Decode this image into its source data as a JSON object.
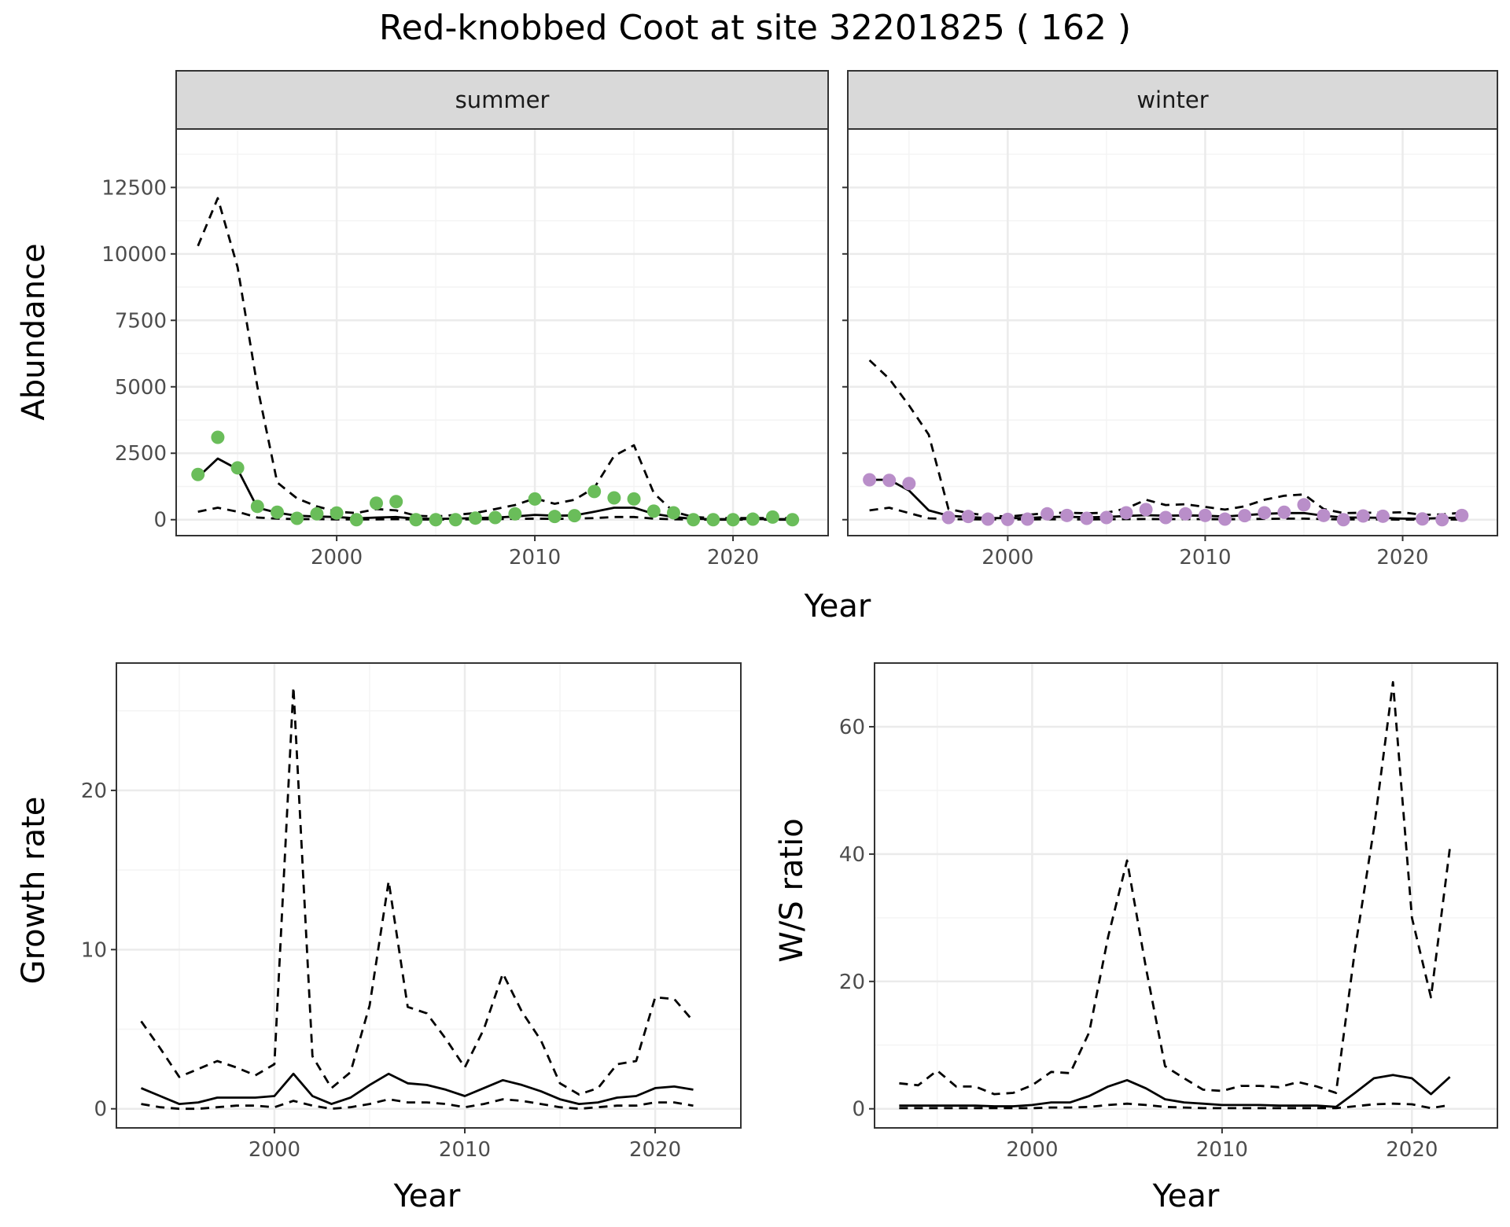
{
  "figure": {
    "title": "Red-knobbed Coot at site 32201825 ( 162 )"
  },
  "colors": {
    "summer_points": "#6abd5a",
    "winter_points": "#b98ec9",
    "line": "#000000",
    "grid_major": "#ebebeb",
    "grid_minor": "#f4f4f4",
    "strip_fill": "#d9d9d9"
  },
  "chart_data": [
    {
      "type": "line",
      "panel": "summer",
      "strip_label": "summer",
      "xlabel": "Year",
      "ylabel": "Abundance",
      "xlim": [
        1991.9,
        2024.8
      ],
      "ylim": [
        -600,
        14700
      ],
      "x_ticks": [
        2000,
        2010,
        2020
      ],
      "y_ticks": [
        0,
        2500,
        5000,
        7500,
        10000,
        12500
      ],
      "y_tick_labels": [
        "0",
        "2500",
        "5000",
        "7500",
        "10000",
        "12500"
      ],
      "grid": true,
      "points": {
        "x": [
          1993,
          1994,
          1995,
          1996,
          1997,
          1998,
          1999,
          2000,
          2001,
          2002,
          2003,
          2004,
          2005,
          2006,
          2007,
          2008,
          2009,
          2010,
          2011,
          2012,
          2013,
          2014,
          2015,
          2016,
          2017,
          2018,
          2019,
          2020,
          2021,
          2022,
          2023
        ],
        "y": [
          1700,
          3100,
          1950,
          500,
          280,
          50,
          220,
          250,
          0,
          620,
          680,
          0,
          0,
          0,
          60,
          80,
          220,
          780,
          120,
          150,
          1060,
          820,
          780,
          320,
          260,
          0,
          0,
          0,
          20,
          100,
          0
        ]
      },
      "series": [
        {
          "style": "solid",
          "x": [
            1993,
            1994,
            1995,
            1996,
            1997,
            1998,
            1999,
            2000,
            2001,
            2002,
            2003,
            2004,
            2005,
            2006,
            2007,
            2008,
            2009,
            2010,
            2011,
            2012,
            2013,
            2014,
            2015,
            2016,
            2017,
            2018,
            2019,
            2020,
            2021,
            2022,
            2023
          ],
          "values": [
            1600,
            2300,
            1900,
            450,
            260,
            150,
            120,
            100,
            50,
            80,
            100,
            40,
            30,
            40,
            60,
            80,
            120,
            180,
            150,
            160,
            300,
            450,
            450,
            220,
            100,
            30,
            20,
            20,
            20,
            20,
            20
          ]
        },
        {
          "style": "dashed",
          "x": [
            1993,
            1994,
            1995,
            1996,
            1997,
            1998,
            1999,
            2000,
            2001,
            2002,
            2003,
            2004,
            2005,
            2006,
            2007,
            2008,
            2009,
            2010,
            2011,
            2012,
            2013,
            2014,
            2015,
            2016,
            2017,
            2018,
            2019,
            2020,
            2021,
            2022,
            2023
          ],
          "values": [
            10300,
            12100,
            9500,
            5000,
            1400,
            800,
            500,
            300,
            250,
            400,
            350,
            150,
            120,
            180,
            250,
            400,
            550,
            800,
            600,
            750,
            1200,
            2400,
            2800,
            1000,
            300,
            100,
            60,
            60,
            60,
            60,
            60
          ]
        },
        {
          "style": "dashed",
          "x": [
            1993,
            1994,
            1995,
            1996,
            1997,
            1998,
            1999,
            2000,
            2001,
            2002,
            2003,
            2004,
            2005,
            2006,
            2007,
            2008,
            2009,
            2010,
            2011,
            2012,
            2013,
            2014,
            2015,
            2016,
            2017,
            2018,
            2019,
            2020,
            2021,
            2022,
            2023
          ],
          "values": [
            300,
            450,
            300,
            80,
            40,
            20,
            20,
            10,
            10,
            10,
            20,
            10,
            5,
            10,
            15,
            20,
            30,
            40,
            30,
            40,
            60,
            100,
            100,
            40,
            15,
            5,
            2,
            2,
            2,
            2,
            2
          ]
        }
      ]
    },
    {
      "type": "line",
      "panel": "winter",
      "strip_label": "winter",
      "xlabel": "Year",
      "ylabel": "",
      "xlim": [
        1991.9,
        2024.8
      ],
      "ylim": [
        -600,
        14700
      ],
      "x_ticks": [
        2000,
        2010,
        2020
      ],
      "grid": true,
      "points": {
        "x": [
          1993,
          1994,
          1995,
          1997,
          1998,
          1999,
          2000,
          2001,
          2002,
          2003,
          2004,
          2005,
          2006,
          2007,
          2008,
          2009,
          2010,
          2011,
          2012,
          2013,
          2014,
          2015,
          2016,
          2017,
          2018,
          2019,
          2021,
          2022,
          2023
        ],
        "y": [
          1500,
          1480,
          1360,
          80,
          120,
          20,
          10,
          20,
          220,
          160,
          50,
          80,
          260,
          380,
          80,
          220,
          160,
          20,
          150,
          260,
          280,
          560,
          160,
          0,
          140,
          130,
          30,
          0,
          160
        ]
      },
      "series": [
        {
          "style": "solid",
          "x": [
            1993,
            1994,
            1995,
            1996,
            1997,
            1998,
            1999,
            2000,
            2001,
            2002,
            2003,
            2004,
            2005,
            2006,
            2007,
            2008,
            2009,
            2010,
            2011,
            2012,
            2013,
            2014,
            2015,
            2016,
            2017,
            2018,
            2019,
            2020,
            2021,
            2022,
            2023
          ],
          "values": [
            1500,
            1500,
            1100,
            350,
            150,
            100,
            60,
            60,
            60,
            100,
            110,
            90,
            100,
            140,
            170,
            150,
            160,
            150,
            120,
            170,
            220,
            250,
            250,
            150,
            80,
            80,
            70,
            40,
            40,
            60,
            80
          ]
        },
        {
          "style": "dashed",
          "x": [
            1993,
            1994,
            1995,
            1996,
            1997,
            1998,
            1999,
            2000,
            2001,
            2002,
            2003,
            2004,
            2005,
            2006,
            2007,
            2008,
            2009,
            2010,
            2011,
            2012,
            2013,
            2014,
            2015,
            2016,
            2017,
            2018,
            2019,
            2020,
            2021,
            2022,
            2023
          ],
          "values": [
            6000,
            5300,
            4300,
            3200,
            400,
            250,
            150,
            120,
            180,
            250,
            260,
            240,
            260,
            420,
            750,
            550,
            580,
            480,
            380,
            500,
            750,
            900,
            950,
            400,
            250,
            260,
            260,
            280,
            180,
            200,
            260
          ]
        },
        {
          "style": "dashed",
          "x": [
            1993,
            1994,
            1995,
            1996,
            1997,
            1998,
            1999,
            2000,
            2001,
            2002,
            2003,
            2004,
            2005,
            2006,
            2007,
            2008,
            2009,
            2010,
            2011,
            2012,
            2013,
            2014,
            2015,
            2016,
            2017,
            2018,
            2019,
            2020,
            2021,
            2022,
            2023
          ],
          "values": [
            350,
            450,
            250,
            50,
            20,
            15,
            10,
            10,
            10,
            15,
            15,
            10,
            15,
            20,
            25,
            20,
            20,
            20,
            15,
            20,
            30,
            40,
            40,
            20,
            10,
            10,
            10,
            5,
            5,
            5,
            10
          ]
        }
      ]
    },
    {
      "type": "line",
      "panel": "growth",
      "xlabel": "Year",
      "ylabel": "Growth rate",
      "xlim": [
        1991.7,
        2024.5
      ],
      "ylim": [
        -1.2,
        28.0
      ],
      "x_ticks": [
        2000,
        2010,
        2020
      ],
      "y_ticks": [
        0,
        10,
        20
      ],
      "y_tick_labels": [
        "0",
        "10",
        "20"
      ],
      "grid": true,
      "series": [
        {
          "style": "solid",
          "x": [
            1993,
            1994,
            1995,
            1996,
            1997,
            1998,
            1999,
            2000,
            2001,
            2002,
            2003,
            2004,
            2005,
            2006,
            2007,
            2008,
            2009,
            2010,
            2011,
            2012,
            2013,
            2014,
            2015,
            2016,
            2017,
            2018,
            2019,
            2020,
            2021,
            2022
          ],
          "values": [
            1.3,
            0.8,
            0.3,
            0.4,
            0.7,
            0.7,
            0.7,
            0.8,
            2.2,
            0.8,
            0.3,
            0.7,
            1.5,
            2.2,
            1.6,
            1.5,
            1.2,
            0.8,
            1.3,
            1.8,
            1.5,
            1.1,
            0.6,
            0.3,
            0.4,
            0.7,
            0.8,
            1.3,
            1.4,
            1.2
          ]
        },
        {
          "style": "dashed",
          "x": [
            1993,
            1994,
            1995,
            1996,
            1997,
            1998,
            1999,
            2000,
            2001,
            2002,
            2003,
            2004,
            2005,
            2006,
            2007,
            2008,
            2009,
            2010,
            2011,
            2012,
            2013,
            2014,
            2015,
            2016,
            2017,
            2018,
            2019,
            2020,
            2021,
            2022
          ],
          "values": [
            5.5,
            3.8,
            2.0,
            2.5,
            3.0,
            2.6,
            2.1,
            2.8,
            26.5,
            3.3,
            1.3,
            2.3,
            6.5,
            14.3,
            6.4,
            6.0,
            4.4,
            2.6,
            5.0,
            8.5,
            6.1,
            4.3,
            1.6,
            0.9,
            1.3,
            2.8,
            3.0,
            7.0,
            6.9,
            5.5
          ]
        },
        {
          "style": "dashed",
          "x": [
            1993,
            1994,
            1995,
            1996,
            1997,
            1998,
            1999,
            2000,
            2001,
            2002,
            2003,
            2004,
            2005,
            2006,
            2007,
            2008,
            2009,
            2010,
            2011,
            2012,
            2013,
            2014,
            2015,
            2016,
            2017,
            2018,
            2019,
            2020,
            2021,
            2022
          ],
          "values": [
            0.3,
            0.1,
            0.0,
            0.0,
            0.1,
            0.2,
            0.2,
            0.1,
            0.5,
            0.2,
            0.0,
            0.1,
            0.3,
            0.6,
            0.4,
            0.4,
            0.3,
            0.1,
            0.3,
            0.6,
            0.5,
            0.3,
            0.1,
            0.0,
            0.1,
            0.2,
            0.2,
            0.4,
            0.4,
            0.2
          ]
        }
      ]
    },
    {
      "type": "line",
      "panel": "ws_ratio",
      "xlabel": "Year",
      "ylabel": "W/S ratio",
      "xlim": [
        1991.7,
        2024.5
      ],
      "ylim": [
        -3.0,
        70.0
      ],
      "x_ticks": [
        2000,
        2010,
        2020
      ],
      "y_ticks": [
        0,
        20,
        40,
        60
      ],
      "y_tick_labels": [
        "0",
        "20",
        "40",
        "60"
      ],
      "grid": true,
      "series": [
        {
          "style": "solid",
          "x": [
            1993,
            1994,
            1995,
            1996,
            1997,
            1998,
            1999,
            2000,
            2001,
            2002,
            2003,
            2004,
            2005,
            2006,
            2007,
            2008,
            2009,
            2010,
            2011,
            2012,
            2013,
            2014,
            2015,
            2016,
            2017,
            2018,
            2019,
            2020,
            2021,
            2022
          ],
          "values": [
            0.5,
            0.5,
            0.5,
            0.5,
            0.5,
            0.4,
            0.4,
            0.6,
            1.0,
            1.0,
            2.0,
            3.5,
            4.5,
            3.2,
            1.5,
            1.0,
            0.8,
            0.6,
            0.6,
            0.6,
            0.5,
            0.5,
            0.5,
            0.3,
            2.5,
            4.8,
            5.3,
            4.8,
            2.3,
            5.0
          ]
        },
        {
          "style": "dashed",
          "x": [
            1993,
            1994,
            1995,
            1996,
            1997,
            1998,
            1999,
            2000,
            2001,
            2002,
            2003,
            2004,
            2005,
            2006,
            2007,
            2008,
            2009,
            2010,
            2011,
            2012,
            2013,
            2014,
            2015,
            2016,
            2017,
            2018,
            2019,
            2020,
            2021,
            2022
          ],
          "values": [
            4.0,
            3.7,
            6.0,
            3.5,
            3.5,
            2.3,
            2.5,
            3.7,
            5.8,
            5.6,
            12.0,
            27.0,
            39.0,
            22.0,
            6.7,
            4.8,
            3.0,
            2.8,
            3.6,
            3.6,
            3.4,
            4.2,
            3.5,
            2.5,
            25.0,
            44.0,
            67.0,
            30.0,
            17.5,
            41.0
          ]
        },
        {
          "style": "dashed",
          "x": [
            1993,
            1994,
            1995,
            1996,
            1997,
            1998,
            1999,
            2000,
            2001,
            2002,
            2003,
            2004,
            2005,
            2006,
            2007,
            2008,
            2009,
            2010,
            2011,
            2012,
            2013,
            2014,
            2015,
            2016,
            2017,
            2018,
            2019,
            2020,
            2021,
            2022
          ],
          "values": [
            0.1,
            0.1,
            0.1,
            0.1,
            0.1,
            0.1,
            0.1,
            0.1,
            0.2,
            0.2,
            0.3,
            0.6,
            0.8,
            0.6,
            0.3,
            0.2,
            0.1,
            0.1,
            0.1,
            0.1,
            0.1,
            0.1,
            0.1,
            0.1,
            0.4,
            0.7,
            0.8,
            0.7,
            0.1,
            0.6
          ]
        }
      ]
    }
  ]
}
